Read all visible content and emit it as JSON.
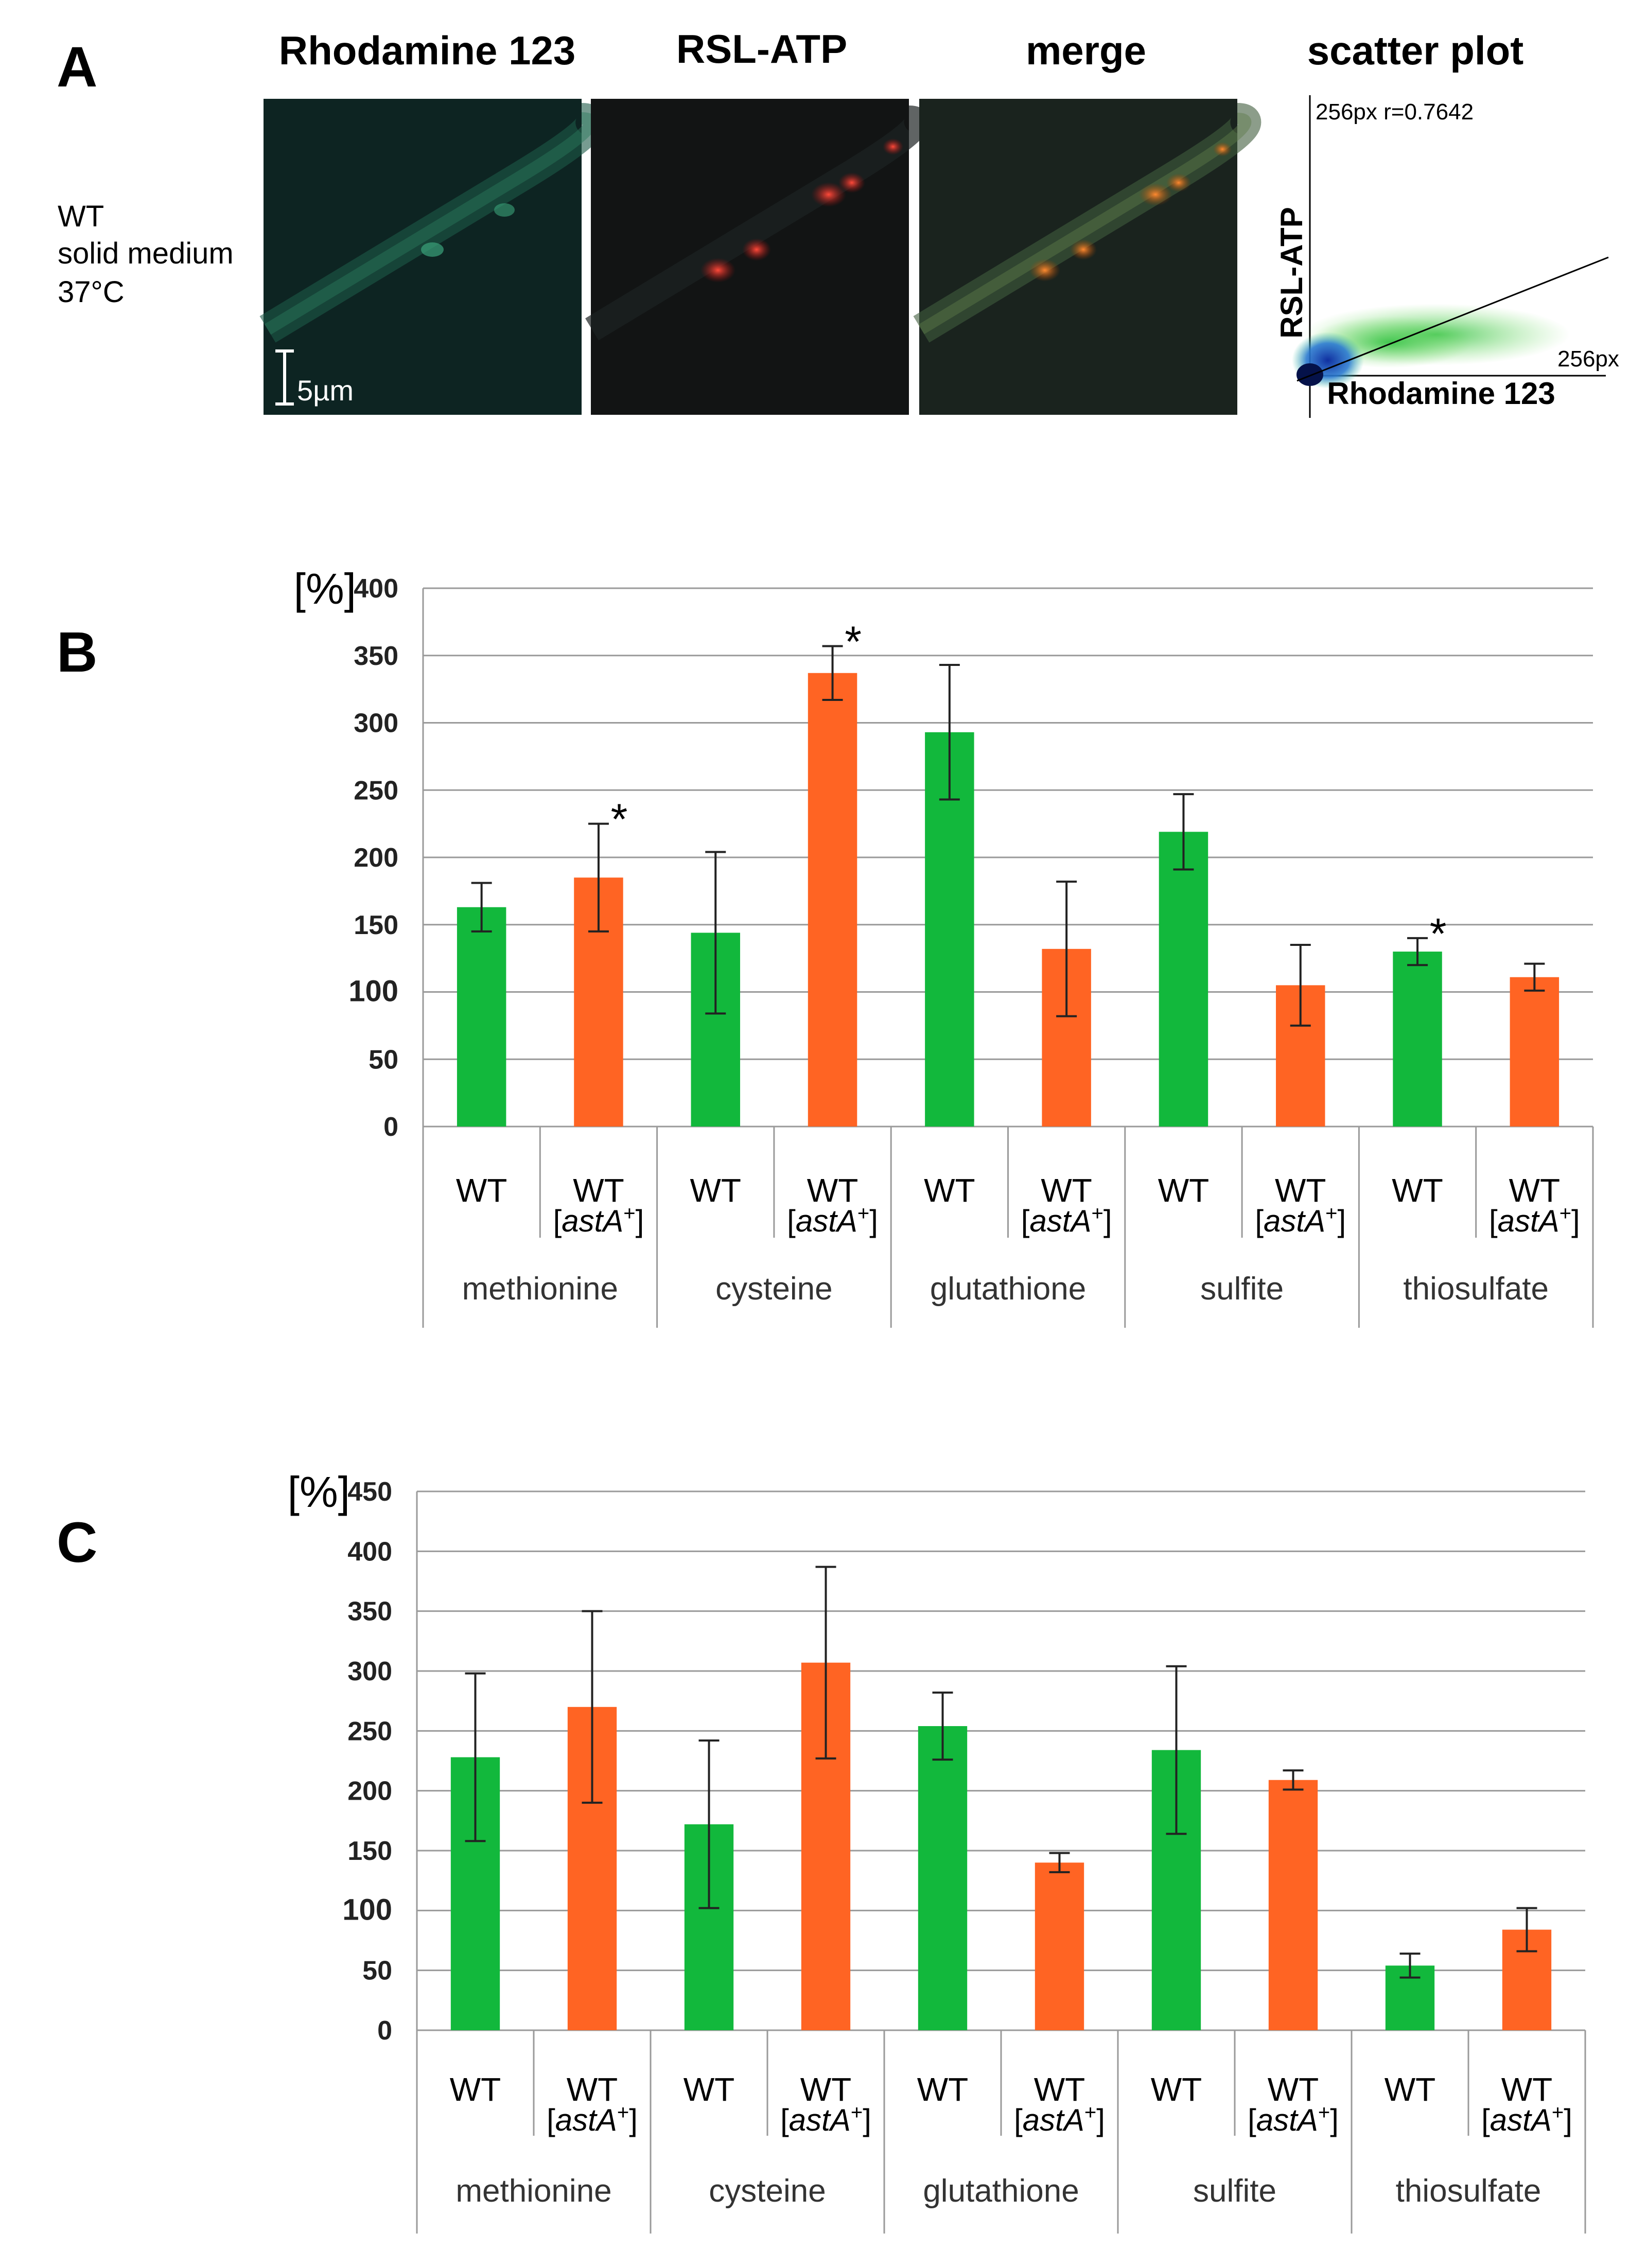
{
  "panel_a": {
    "label": "A",
    "condition_lines": [
      "WT",
      "solid medium",
      "37°C"
    ],
    "columns": [
      "Rhodamine 123",
      "RSL-ATP",
      "merge",
      "scatter plot"
    ],
    "scale_bar": "5µm",
    "scatter": {
      "corner_label": "256px r=0.7642",
      "x_max_label": "256px",
      "xlabel": "Rhodamine 123",
      "ylabel": "RSL-ATP"
    }
  },
  "chart_data": [
    {
      "type": "bar",
      "panel": "B",
      "ylabel": "[%]",
      "ylim": [
        0,
        400
      ],
      "yticks": [
        0,
        50,
        100,
        150,
        200,
        250,
        300,
        350,
        400
      ],
      "groups": [
        "methionine",
        "cysteine",
        "glutathione",
        "sulfite",
        "thiosulfate"
      ],
      "strain_labels": [
        {
          "name": "WT",
          "plasmid": ""
        },
        {
          "name": "WT",
          "plasmid": "[astA+]"
        }
      ],
      "series": [
        {
          "name": "WT",
          "color": "#12b83c",
          "values": [
            163,
            144,
            293,
            219,
            130
          ],
          "errors": [
            18,
            60,
            50,
            28,
            10
          ]
        },
        {
          "name": "WT [astA+]",
          "color": "#ff6423",
          "values": [
            185,
            337,
            132,
            105,
            111
          ],
          "errors": [
            40,
            20,
            50,
            30,
            10
          ]
        }
      ],
      "significance": [
        {
          "group": "methionine",
          "series": "WT [astA+]",
          "mark": "*"
        },
        {
          "group": "cysteine",
          "series": "WT [astA+]",
          "mark": "*"
        },
        {
          "group": "thiosulfate",
          "series": "WT",
          "mark": "*"
        }
      ]
    },
    {
      "type": "bar",
      "panel": "C",
      "ylabel": "[%]",
      "ylim": [
        0,
        450
      ],
      "yticks": [
        0,
        50,
        100,
        150,
        200,
        250,
        300,
        350,
        400,
        450
      ],
      "groups": [
        "methionine",
        "cysteine",
        "glutathione",
        "sulfite",
        "thiosulfate"
      ],
      "strain_labels": [
        {
          "name": "WT",
          "plasmid": ""
        },
        {
          "name": "WT",
          "plasmid": "[astA+]"
        }
      ],
      "series": [
        {
          "name": "WT",
          "color": "#12b83c",
          "values": [
            228,
            172,
            254,
            234,
            54
          ],
          "errors": [
            70,
            70,
            28,
            70,
            10
          ]
        },
        {
          "name": "WT [astA+]",
          "color": "#ff6423",
          "values": [
            270,
            307,
            140,
            209,
            84
          ],
          "errors": [
            80,
            80,
            8,
            8,
            18
          ]
        }
      ],
      "significance": []
    }
  ]
}
